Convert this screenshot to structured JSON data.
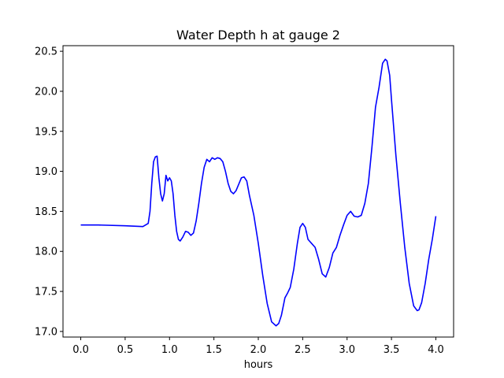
{
  "chart_data": {
    "type": "line",
    "title": "Water Depth h at gauge 2",
    "xlabel": "hours",
    "ylabel": "",
    "xlim": [
      -0.2,
      4.2
    ],
    "ylim": [
      16.93,
      20.57
    ],
    "xticks": [
      0.0,
      0.5,
      1.0,
      1.5,
      2.0,
      2.5,
      3.0,
      3.5,
      4.0
    ],
    "xtick_labels": [
      "0.0",
      "0.5",
      "1.0",
      "1.5",
      "2.0",
      "2.5",
      "3.0",
      "3.5",
      "4.0"
    ],
    "yticks": [
      17.0,
      17.5,
      18.0,
      18.5,
      19.0,
      19.5,
      20.0,
      20.5
    ],
    "ytick_labels": [
      "17.0",
      "17.5",
      "18.0",
      "18.5",
      "19.0",
      "19.5",
      "20.0",
      "20.5"
    ],
    "grid": false,
    "series": [
      {
        "color": "#0000ff",
        "x": [
          0.0,
          0.2,
          0.5,
          0.7,
          0.76,
          0.78,
          0.8,
          0.82,
          0.84,
          0.86,
          0.88,
          0.9,
          0.92,
          0.94,
          0.96,
          0.98,
          1.0,
          1.02,
          1.04,
          1.06,
          1.08,
          1.1,
          1.12,
          1.15,
          1.18,
          1.21,
          1.24,
          1.27,
          1.3,
          1.33,
          1.36,
          1.39,
          1.42,
          1.45,
          1.48,
          1.51,
          1.54,
          1.57,
          1.6,
          1.63,
          1.66,
          1.69,
          1.72,
          1.75,
          1.78,
          1.81,
          1.84,
          1.87,
          1.9,
          1.95,
          2.0,
          2.05,
          2.1,
          2.15,
          2.2,
          2.23,
          2.26,
          2.3,
          2.33,
          2.36,
          2.4,
          2.44,
          2.47,
          2.5,
          2.53,
          2.56,
          2.6,
          2.64,
          2.68,
          2.72,
          2.76,
          2.8,
          2.84,
          2.88,
          2.92,
          2.96,
          3.0,
          3.04,
          3.08,
          3.12,
          3.16,
          3.2,
          3.24,
          3.28,
          3.32,
          3.36,
          3.4,
          3.43,
          3.45,
          3.48,
          3.5,
          3.55,
          3.6,
          3.65,
          3.7,
          3.75,
          3.79,
          3.81,
          3.84,
          3.88,
          3.92,
          3.96,
          4.0
        ],
        "y": [
          18.33,
          18.33,
          18.32,
          18.31,
          18.35,
          18.5,
          18.85,
          19.12,
          19.18,
          19.19,
          18.92,
          18.72,
          18.63,
          18.72,
          18.95,
          18.88,
          18.92,
          18.88,
          18.72,
          18.45,
          18.25,
          18.15,
          18.13,
          18.18,
          18.25,
          18.24,
          18.2,
          18.23,
          18.38,
          18.6,
          18.85,
          19.05,
          19.15,
          19.12,
          19.17,
          19.15,
          19.17,
          19.16,
          19.12,
          19.0,
          18.85,
          18.75,
          18.72,
          18.76,
          18.84,
          18.92,
          18.93,
          18.88,
          18.7,
          18.45,
          18.1,
          17.7,
          17.35,
          17.12,
          17.07,
          17.1,
          17.2,
          17.42,
          17.48,
          17.55,
          17.78,
          18.1,
          18.3,
          18.35,
          18.3,
          18.15,
          18.1,
          18.05,
          17.9,
          17.72,
          17.68,
          17.8,
          17.98,
          18.05,
          18.2,
          18.33,
          18.45,
          18.5,
          18.44,
          18.43,
          18.45,
          18.6,
          18.85,
          19.3,
          19.8,
          20.05,
          20.35,
          20.4,
          20.38,
          20.2,
          19.9,
          19.2,
          18.6,
          18.05,
          17.6,
          17.32,
          17.26,
          17.27,
          17.36,
          17.6,
          17.9,
          18.15,
          18.44
        ]
      }
    ]
  }
}
